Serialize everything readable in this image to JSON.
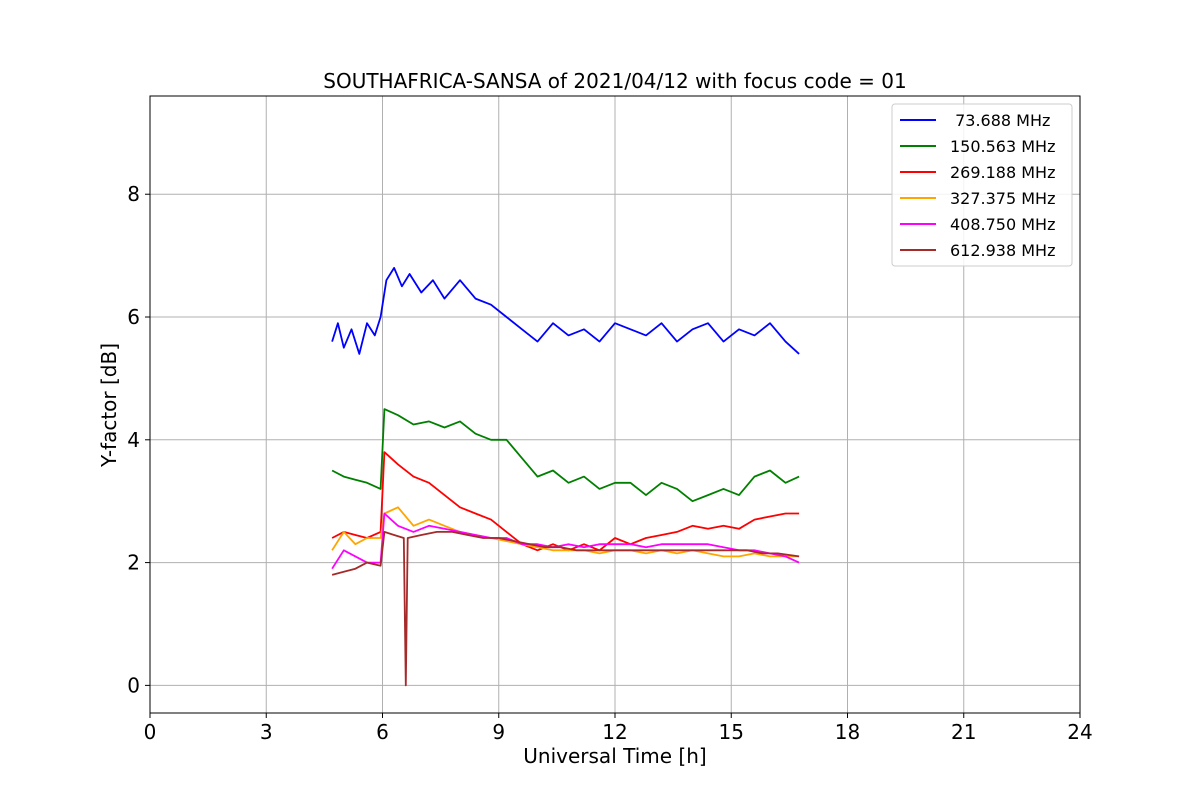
{
  "chart_data": {
    "type": "line",
    "title": "SOUTHAFRICA-SANSA of 2021/04/12 with focus code = 01",
    "xlabel": "Universal Time [h]",
    "ylabel": "Y-factor [dB]",
    "xlim": [
      0,
      24
    ],
    "ylim": [
      -0.45,
      9.6
    ],
    "xticks": [
      0,
      3,
      6,
      9,
      12,
      15,
      18,
      21,
      24
    ],
    "xtick_labels": [
      "0",
      "3",
      "6",
      "9",
      "12",
      "15",
      "18",
      "21",
      "24"
    ],
    "yticks": [
      0,
      2,
      4,
      6,
      8
    ],
    "ytick_labels": [
      "0",
      "2",
      "4",
      "6",
      "8"
    ],
    "grid": true,
    "legend_position": "top-right",
    "series": [
      {
        "name": " 73.688 MHz",
        "color": "#0000ff",
        "x": [
          4.7,
          4.85,
          5.0,
          5.2,
          5.4,
          5.6,
          5.8,
          5.95,
          6.1,
          6.3,
          6.5,
          6.7,
          7.0,
          7.3,
          7.6,
          8.0,
          8.4,
          8.8,
          9.2,
          9.6,
          10.0,
          10.4,
          10.8,
          11.2,
          11.6,
          12.0,
          12.4,
          12.8,
          13.2,
          13.6,
          14.0,
          14.4,
          14.8,
          15.2,
          15.6,
          16.0,
          16.4,
          16.75
        ],
        "y": [
          5.6,
          5.9,
          5.5,
          5.8,
          5.4,
          5.9,
          5.7,
          6.0,
          6.6,
          6.8,
          6.5,
          6.7,
          6.4,
          6.6,
          6.3,
          6.6,
          6.3,
          6.2,
          6.0,
          5.8,
          5.6,
          5.9,
          5.7,
          5.8,
          5.6,
          5.9,
          5.8,
          5.7,
          5.9,
          5.6,
          5.8,
          5.9,
          5.6,
          5.8,
          5.7,
          5.9,
          5.6,
          5.4
        ]
      },
      {
        "name": "150.563 MHz",
        "color": "#008000",
        "x": [
          4.7,
          5.0,
          5.3,
          5.6,
          5.95,
          6.05,
          6.4,
          6.8,
          7.2,
          7.6,
          8.0,
          8.4,
          8.8,
          9.2,
          9.6,
          10.0,
          10.4,
          10.8,
          11.2,
          11.6,
          12.0,
          12.4,
          12.8,
          13.2,
          13.6,
          14.0,
          14.4,
          14.8,
          15.2,
          15.6,
          16.0,
          16.4,
          16.75
        ],
        "y": [
          3.5,
          3.4,
          3.35,
          3.3,
          3.2,
          4.5,
          4.4,
          4.25,
          4.3,
          4.2,
          4.3,
          4.1,
          4.0,
          4.0,
          3.7,
          3.4,
          3.5,
          3.3,
          3.4,
          3.2,
          3.3,
          3.3,
          3.1,
          3.3,
          3.2,
          3.0,
          3.1,
          3.2,
          3.1,
          3.4,
          3.5,
          3.3,
          3.4
        ]
      },
      {
        "name": "269.188 MHz",
        "color": "#ff0000",
        "x": [
          4.7,
          5.0,
          5.3,
          5.6,
          5.95,
          6.05,
          6.4,
          6.8,
          7.2,
          7.6,
          8.0,
          8.4,
          8.8,
          9.2,
          9.6,
          10.0,
          10.4,
          10.8,
          11.2,
          11.6,
          12.0,
          12.4,
          12.8,
          13.2,
          13.6,
          14.0,
          14.4,
          14.8,
          15.2,
          15.6,
          16.0,
          16.4,
          16.75
        ],
        "y": [
          2.4,
          2.5,
          2.45,
          2.4,
          2.5,
          3.8,
          3.6,
          3.4,
          3.3,
          3.1,
          2.9,
          2.8,
          2.7,
          2.5,
          2.3,
          2.2,
          2.3,
          2.2,
          2.3,
          2.2,
          2.4,
          2.3,
          2.4,
          2.45,
          2.5,
          2.6,
          2.55,
          2.6,
          2.55,
          2.7,
          2.75,
          2.8,
          2.8
        ]
      },
      {
        "name": "327.375 MHz",
        "color": "#ffa500",
        "x": [
          4.7,
          5.0,
          5.3,
          5.6,
          5.95,
          6.05,
          6.4,
          6.8,
          7.2,
          7.6,
          8.0,
          8.4,
          8.8,
          9.2,
          9.6,
          10.0,
          10.4,
          10.8,
          11.2,
          11.6,
          12.0,
          12.4,
          12.8,
          13.2,
          13.6,
          14.0,
          14.4,
          14.8,
          15.2,
          15.6,
          16.0,
          16.4,
          16.75
        ],
        "y": [
          2.2,
          2.5,
          2.3,
          2.4,
          2.4,
          2.8,
          2.9,
          2.6,
          2.7,
          2.6,
          2.5,
          2.45,
          2.4,
          2.35,
          2.3,
          2.25,
          2.2,
          2.2,
          2.2,
          2.15,
          2.2,
          2.2,
          2.15,
          2.2,
          2.15,
          2.2,
          2.15,
          2.1,
          2.1,
          2.15,
          2.1,
          2.1,
          2.1
        ]
      },
      {
        "name": "408.750 MHz",
        "color": "#ff00ff",
        "x": [
          4.7,
          5.0,
          5.3,
          5.6,
          5.95,
          6.05,
          6.4,
          6.8,
          7.2,
          7.6,
          8.0,
          8.4,
          8.8,
          9.2,
          9.6,
          10.0,
          10.4,
          10.8,
          11.2,
          11.6,
          12.0,
          12.4,
          12.8,
          13.2,
          13.6,
          14.0,
          14.4,
          14.8,
          15.2,
          15.6,
          16.0,
          16.4,
          16.75
        ],
        "y": [
          1.9,
          2.2,
          2.1,
          2.0,
          2.0,
          2.8,
          2.6,
          2.5,
          2.6,
          2.55,
          2.5,
          2.45,
          2.4,
          2.4,
          2.3,
          2.3,
          2.25,
          2.3,
          2.25,
          2.3,
          2.3,
          2.3,
          2.25,
          2.3,
          2.3,
          2.3,
          2.3,
          2.25,
          2.2,
          2.2,
          2.15,
          2.1,
          2.0
        ]
      },
      {
        "name": "612.938 MHz",
        "color": "#a52a2a",
        "x": [
          4.7,
          5.0,
          5.3,
          5.6,
          5.95,
          6.05,
          6.3,
          6.55,
          6.6,
          6.65,
          7.0,
          7.4,
          7.8,
          8.2,
          8.6,
          9.0,
          9.4,
          9.8,
          10.2,
          10.6,
          11.0,
          11.4,
          11.8,
          12.2,
          12.6,
          13.0,
          13.4,
          13.8,
          14.2,
          14.6,
          15.0,
          15.4,
          15.8,
          16.2,
          16.75
        ],
        "y": [
          1.8,
          1.85,
          1.9,
          2.0,
          1.95,
          2.5,
          2.45,
          2.4,
          0.0,
          2.4,
          2.45,
          2.5,
          2.5,
          2.45,
          2.4,
          2.4,
          2.35,
          2.3,
          2.25,
          2.25,
          2.2,
          2.2,
          2.2,
          2.2,
          2.2,
          2.2,
          2.2,
          2.2,
          2.2,
          2.2,
          2.2,
          2.2,
          2.15,
          2.15,
          2.1
        ]
      }
    ]
  }
}
